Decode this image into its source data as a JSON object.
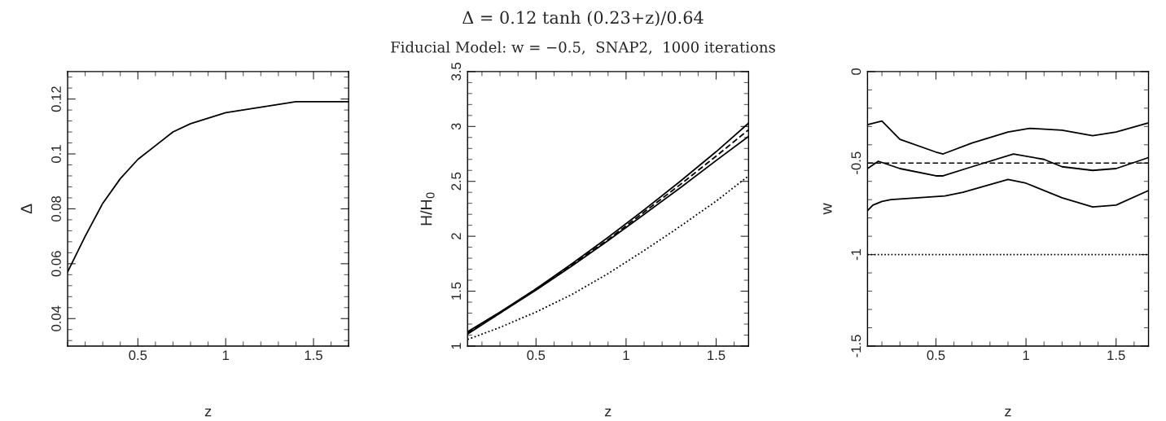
{
  "chart_data": [
    {
      "type": "line",
      "xlabel": "z",
      "ylabel": "Δ",
      "xlim": [
        0.1,
        1.7
      ],
      "ylim": [
        0.03,
        0.13
      ],
      "xticks": [
        0.5,
        1,
        1.5
      ],
      "yticks": [
        0.04,
        0.06,
        0.08,
        0.1,
        0.12
      ],
      "grid": false,
      "legend": false,
      "marker": "none",
      "x": [
        0.1,
        0.2,
        0.3,
        0.4,
        0.5,
        0.6,
        0.7,
        0.8,
        0.9,
        1.0,
        1.2,
        1.4,
        1.6,
        1.7
      ],
      "series": [
        {
          "color": "#000000",
          "line_style": "solid",
          "values": [
            0.057,
            0.07,
            0.082,
            0.091,
            0.098,
            0.103,
            0.108,
            0.111,
            0.113,
            0.115,
            0.117,
            0.119,
            0.119,
            0.119
          ]
        }
      ]
    },
    {
      "type": "line",
      "title": "Δ = 0.12 tanh (0.23+z)/0.64",
      "subtitle": "Fiducial Model: w = −0.5,  SNAP2,  1000 iterations",
      "xlabel": "z",
      "ylabel": "H/H$_{0}$",
      "xlim": [
        0.12,
        1.68
      ],
      "ylim": [
        1,
        3.5
      ],
      "xticks": [
        0.5,
        1,
        1.5
      ],
      "yticks": [
        1,
        1.5,
        2,
        2.5,
        3,
        3.5
      ],
      "grid": false,
      "legend": false,
      "marker": "none",
      "x": [
        0.12,
        0.3,
        0.5,
        0.7,
        0.9,
        1.1,
        1.3,
        1.5,
        1.68
      ],
      "series": [
        {
          "color": "#000000",
          "line_style": "solid",
          "values": [
            1.13,
            1.31,
            1.52,
            1.75,
            1.99,
            2.24,
            2.5,
            2.77,
            3.03
          ]
        },
        {
          "color": "#000000",
          "line_style": "dashed",
          "values": [
            1.12,
            1.3,
            1.52,
            1.74,
            1.97,
            2.22,
            2.47,
            2.73,
            2.97
          ]
        },
        {
          "color": "#000000",
          "line_style": "solid",
          "values": [
            1.11,
            1.3,
            1.51,
            1.73,
            1.96,
            2.2,
            2.44,
            2.69,
            2.91
          ]
        },
        {
          "color": "#000000",
          "line_style": "dotted",
          "values": [
            1.06,
            1.17,
            1.31,
            1.47,
            1.66,
            1.87,
            2.09,
            2.32,
            2.55
          ]
        }
      ]
    },
    {
      "type": "line",
      "xlabel": "z",
      "ylabel": "w",
      "xlim": [
        0.12,
        1.68
      ],
      "ylim": [
        -1.5,
        0
      ],
      "xticks": [
        0.5,
        1,
        1.5
      ],
      "yticks": [
        -1.5,
        -1,
        -0.5,
        0
      ],
      "grid": false,
      "legend": false,
      "marker": "none",
      "series": [
        {
          "color": "#000000",
          "line_style": "solid",
          "x": [
            0.12,
            0.2,
            0.3,
            0.5,
            0.54,
            0.7,
            0.9,
            1.02,
            1.2,
            1.37,
            1.5,
            1.68
          ],
          "values": [
            -0.29,
            -0.27,
            -0.37,
            -0.44,
            -0.45,
            -0.39,
            -0.33,
            -0.31,
            -0.32,
            -0.35,
            -0.33,
            -0.28
          ]
        },
        {
          "color": "#000000",
          "line_style": "solid",
          "x": [
            0.12,
            0.18,
            0.3,
            0.5,
            0.54,
            0.7,
            0.93,
            1.1,
            1.2,
            1.37,
            1.5,
            1.68
          ],
          "values": [
            -0.53,
            -0.49,
            -0.53,
            -0.57,
            -0.57,
            -0.52,
            -0.45,
            -0.48,
            -0.52,
            -0.54,
            -0.53,
            -0.47
          ]
        },
        {
          "color": "#000000",
          "line_style": "solid",
          "x": [
            0.12,
            0.15,
            0.2,
            0.25,
            0.4,
            0.55,
            0.65,
            0.9,
            1.0,
            1.2,
            1.37,
            1.5,
            1.68
          ],
          "values": [
            -0.76,
            -0.73,
            -0.71,
            -0.7,
            -0.69,
            -0.68,
            -0.66,
            -0.59,
            -0.61,
            -0.69,
            -0.74,
            -0.73,
            -0.65
          ]
        }
      ],
      "ref_lines": [
        {
          "axis": "y",
          "value": -0.5,
          "line_style": "dashed",
          "color": "#000000"
        },
        {
          "axis": "y",
          "value": -1,
          "line_style": "dotted",
          "color": "#000000"
        }
      ]
    }
  ]
}
